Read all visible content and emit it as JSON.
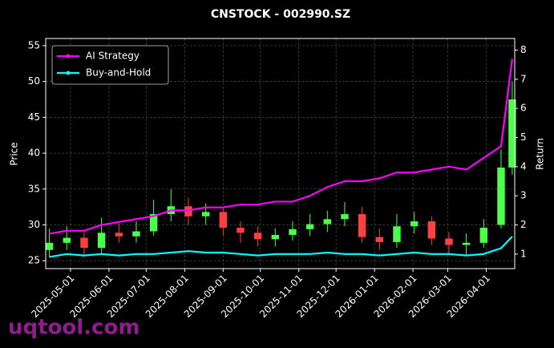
{
  "chart_data": {
    "type": "candlestick",
    "title": "CNSTOCK - 002990.SZ",
    "ylabel": "Price",
    "y2label": "Return",
    "watermark": "uqtool.com",
    "x": [
      "2025-04-14",
      "2025-04-28",
      "2025-05-12",
      "2025-05-26",
      "2025-06-09",
      "2025-06-23",
      "2025-07-07",
      "2025-07-21",
      "2025-08-04",
      "2025-08-18",
      "2025-09-01",
      "2025-09-15",
      "2025-09-29",
      "2025-10-13",
      "2025-10-27",
      "2025-11-10",
      "2025-11-24",
      "2025-12-08",
      "2025-12-22",
      "2026-01-05",
      "2026-01-19",
      "2026-02-02",
      "2026-02-16",
      "2026-03-02",
      "2026-03-16",
      "2026-03-30",
      "2026-04-13",
      "2026-04-22"
    ],
    "open": [
      26.5,
      27.5,
      28.2,
      26.8,
      28.9,
      28.4,
      29.1,
      31.5,
      32.6,
      31.2,
      31.8,
      29.6,
      28.9,
      28.0,
      28.6,
      29.4,
      30.1,
      30.8,
      31.5,
      28.3,
      27.6,
      29.8,
      30.5,
      28.1,
      27.2,
      27.5,
      30.0,
      38.0
    ],
    "high": [
      29.5,
      29.8,
      29.0,
      31.0,
      30.2,
      30.5,
      33.5,
      35.0,
      33.8,
      33.0,
      32.5,
      30.5,
      29.8,
      29.5,
      30.5,
      31.5,
      32.0,
      33.2,
      32.5,
      29.5,
      31.5,
      31.8,
      31.2,
      29.0,
      28.8,
      30.8,
      40.5,
      50.0
    ],
    "low": [
      25.5,
      26.5,
      25.5,
      26.0,
      27.5,
      27.5,
      28.5,
      30.5,
      30.0,
      30.0,
      28.5,
      27.5,
      27.0,
      27.0,
      27.8,
      28.5,
      29.0,
      29.8,
      27.5,
      26.5,
      26.8,
      28.8,
      27.2,
      26.0,
      25.8,
      26.8,
      29.5,
      37.0
    ],
    "close": [
      27.5,
      28.2,
      26.8,
      28.9,
      28.4,
      29.1,
      31.5,
      32.6,
      31.2,
      31.8,
      29.6,
      28.9,
      28.0,
      28.6,
      29.4,
      30.1,
      30.8,
      31.5,
      28.3,
      27.6,
      29.8,
      30.5,
      28.1,
      27.2,
      27.5,
      29.6,
      38.0,
      47.5
    ],
    "up_color": "#4cff4c",
    "down_color": "#ff4040",
    "series": [
      {
        "name": "AI Strategy",
        "color": "#ff00ff",
        "axis": "y2",
        "values": [
          1.7,
          1.8,
          1.8,
          2.0,
          2.1,
          2.2,
          2.3,
          2.5,
          2.5,
          2.6,
          2.6,
          2.7,
          2.7,
          2.8,
          2.8,
          3.0,
          3.3,
          3.5,
          3.5,
          3.6,
          3.8,
          3.8,
          3.9,
          4.0,
          3.9,
          4.3,
          4.7,
          7.7
        ]
      },
      {
        "name": "Buy-and-Hold",
        "color": "#00ffff",
        "axis": "y2",
        "values": [
          0.9,
          1.0,
          0.95,
          1.0,
          0.95,
          1.0,
          1.0,
          1.05,
          1.1,
          1.05,
          1.05,
          1.0,
          0.95,
          1.0,
          1.0,
          1.0,
          1.05,
          1.0,
          1.0,
          0.95,
          1.0,
          1.05,
          1.0,
          1.0,
          0.95,
          1.0,
          1.2,
          1.6
        ]
      }
    ],
    "xlim": [
      "2025-04-11",
      "2026-04-24"
    ],
    "xticks": [
      "2025-05-01",
      "2025-06-01",
      "2025-07-01",
      "2025-08-01",
      "2025-09-01",
      "2025-10-01",
      "2025-11-01",
      "2025-12-01",
      "2026-01-01",
      "2026-02-01",
      "2026-03-01",
      "2026-04-01"
    ],
    "ylim": [
      23.9,
      56.0
    ],
    "yticks": [
      25,
      30,
      35,
      40,
      45,
      50,
      55
    ],
    "y2lim": [
      0.5,
      8.4
    ],
    "y2ticks": [
      1,
      2,
      3,
      4,
      5,
      6,
      7,
      8
    ],
    "grid": true,
    "legend": "upper-left"
  }
}
